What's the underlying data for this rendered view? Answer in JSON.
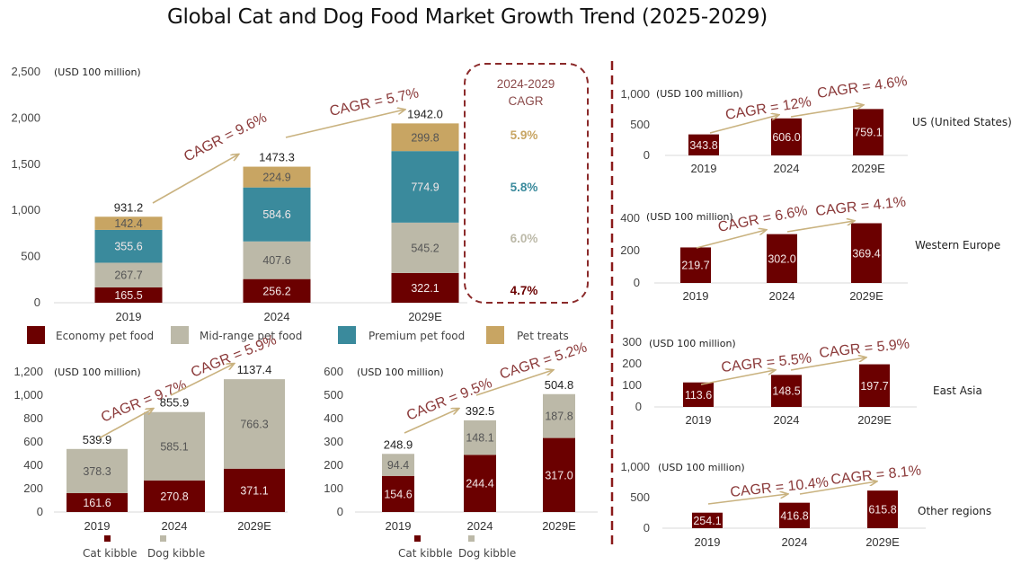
{
  "title": "Global Cat and Dog Food Market Growth Trend (2025-2029)",
  "colors": {
    "economy": "#6b0000",
    "midrange": "#bcb9a8",
    "premium": "#3a8a9c",
    "treats": "#c8a563",
    "cagr_text": "#8b3a3a",
    "arrow": "#c9b27f",
    "divider": "#8b1a1a"
  },
  "chart_data": [
    {
      "id": "global-by-tier",
      "type": "bar",
      "stacked": true,
      "unit_label": "(USD 100 million)",
      "categories": [
        "2019",
        "2024",
        "2029E"
      ],
      "series": [
        {
          "name": "Economy pet food",
          "key": "economy",
          "values": [
            165.5,
            256.2,
            322.1
          ]
        },
        {
          "name": "Mid-range pet food",
          "key": "midrange",
          "values": [
            267.7,
            407.6,
            545.2
          ]
        },
        {
          "name": "Premium pet food",
          "key": "premium",
          "values": [
            355.6,
            584.6,
            774.9
          ]
        },
        {
          "name": "Pet treats",
          "key": "treats",
          "values": [
            142.4,
            224.9,
            299.8
          ]
        }
      ],
      "totals": [
        "931.2",
        "1473.3",
        "1942.0"
      ],
      "ylim": [
        0,
        2500
      ],
      "yticks": [
        "0",
        "500",
        "1,000",
        "1,500",
        "2,000",
        "2,500"
      ],
      "cagr_annotations": [
        "CAGR = 9.6%",
        "CAGR = 5.7%"
      ],
      "cagr_box": {
        "title_line1": "2024-2029",
        "title_line2": "CAGR",
        "values": [
          {
            "key": "treats",
            "text": "5.9%"
          },
          {
            "key": "premium",
            "text": "5.8%"
          },
          {
            "key": "midrange",
            "text": "6.0%"
          },
          {
            "key": "economy",
            "text": "4.7%"
          }
        ]
      },
      "legend": [
        "Economy pet food",
        "Mid-range pet food",
        "Premium pet food",
        "Pet treats"
      ],
      "legend_position": "bottom"
    },
    {
      "id": "kibble-left",
      "type": "bar",
      "stacked": true,
      "unit_label": "(USD 100 million)",
      "categories": [
        "2019",
        "2024",
        "2029E"
      ],
      "series": [
        {
          "name": "Cat kibble",
          "key": "economy",
          "values": [
            161.6,
            270.8,
            371.1
          ]
        },
        {
          "name": "Dog kibble",
          "key": "midrange",
          "values": [
            378.3,
            585.1,
            766.3
          ]
        }
      ],
      "totals": [
        "539.9",
        "855.9",
        "1137.4"
      ],
      "ylim": [
        0,
        1200
      ],
      "yticks": [
        "0",
        "200",
        "400",
        "600",
        "800",
        "1,000",
        "1,200"
      ],
      "cagr_annotations": [
        "CAGR = 9.7%",
        "CAGR = 5.9%"
      ],
      "legend": [
        "Cat kibble",
        "Dog kibble"
      ],
      "legend_position": "bottom"
    },
    {
      "id": "kibble-right",
      "type": "bar",
      "stacked": true,
      "unit_label": "(USD 100 million)",
      "categories": [
        "2019",
        "2024",
        "2029E"
      ],
      "series": [
        {
          "name": "Cat kibble",
          "key": "economy",
          "values": [
            154.6,
            244.4,
            317.0
          ]
        },
        {
          "name": "Dog kibble",
          "key": "midrange",
          "values": [
            94.4,
            148.1,
            187.8
          ]
        }
      ],
      "totals": [
        "248.9",
        "392.5",
        "504.8"
      ],
      "ylim": [
        0,
        600
      ],
      "yticks": [
        "0",
        "100",
        "200",
        "300",
        "400",
        "500",
        "600"
      ],
      "cagr_annotations": [
        "CAGR = 9.5%",
        "CAGR = 5.2%"
      ],
      "legend": [
        "Cat kibble",
        "Dog kibble"
      ],
      "legend_position": "bottom"
    },
    {
      "id": "region-us",
      "type": "bar",
      "region": "US (United States)",
      "unit_label": "(USD 100 million)",
      "categories": [
        "2019",
        "2024",
        "2029E"
      ],
      "values": [
        343.8,
        606.0,
        759.1
      ],
      "ylim": [
        0,
        1000
      ],
      "yticks": [
        "0",
        "500",
        "1,000"
      ],
      "cagr_annotations": [
        "CAGR = 12%",
        "CAGR = 4.6%"
      ]
    },
    {
      "id": "region-western-europe",
      "type": "bar",
      "region": "Western Europe",
      "unit_label": "(USD 100 million)",
      "categories": [
        "2019",
        "2024",
        "2029E"
      ],
      "values": [
        219.7,
        302.0,
        369.4
      ],
      "ylim": [
        0,
        400
      ],
      "yticks": [
        "0",
        "200",
        "400"
      ],
      "cagr_annotations": [
        "CAGR = 6.6%",
        "CAGR = 4.1%"
      ]
    },
    {
      "id": "region-east-asia",
      "type": "bar",
      "region": "East Asia",
      "unit_label": "(USD 100 million)",
      "categories": [
        "2019",
        "2024",
        "2029E"
      ],
      "values": [
        113.6,
        148.5,
        197.7
      ],
      "ylim": [
        0,
        300
      ],
      "yticks": [
        "0",
        "100",
        "200",
        "300"
      ],
      "cagr_annotations": [
        "CAGR = 5.5%",
        "CAGR = 5.9%"
      ]
    },
    {
      "id": "region-other",
      "type": "bar",
      "region": "Other regions",
      "unit_label": "(USD 100 million)",
      "categories": [
        "2019",
        "2024",
        "2029E"
      ],
      "values": [
        254.1,
        416.8,
        615.8
      ],
      "ylim": [
        0,
        1000
      ],
      "yticks": [
        "0",
        "500",
        "1,000"
      ],
      "cagr_annotations": [
        "CAGR = 10.4%",
        "CAGR = 8.1%"
      ]
    }
  ]
}
